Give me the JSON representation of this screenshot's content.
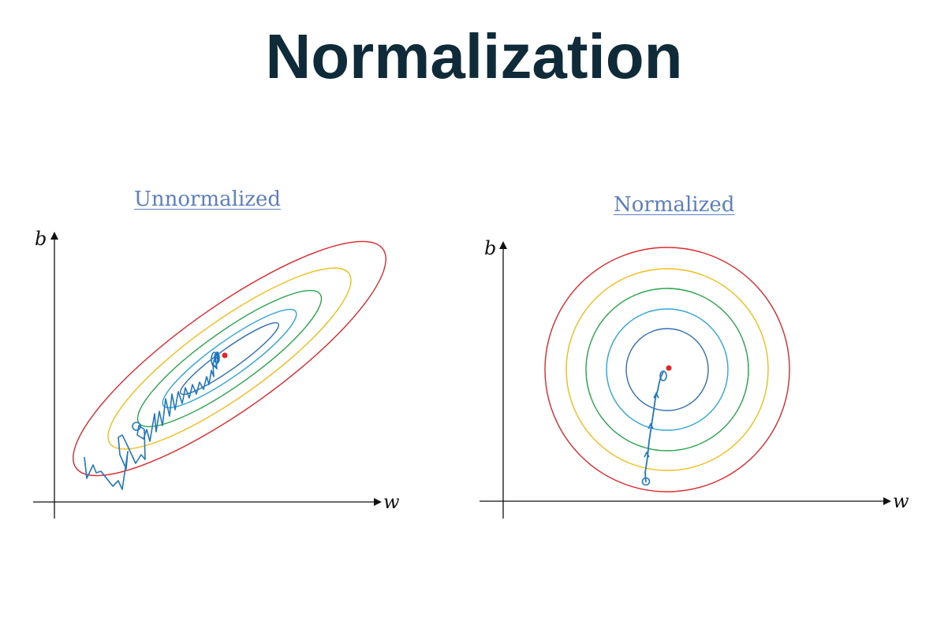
{
  "title": "Normalization",
  "panels": [
    {
      "title": "Unnormalized",
      "x_axis_label": "w",
      "y_axis_label": "b",
      "contour_colors": [
        "#e0282a",
        "#f1bd1a",
        "#2aa64a",
        "#2fa6d8",
        "#2f6fb4"
      ],
      "path_color": "#1f78c1",
      "minimum_color": "#e0282a"
    },
    {
      "title": "Normalized",
      "x_axis_label": "w",
      "y_axis_label": "b",
      "contour_colors": [
        "#e0282a",
        "#f1bd1a",
        "#2aa64a",
        "#2fa6d8",
        "#2f6fb4"
      ],
      "path_color": "#1f78c1",
      "minimum_color": "#e0282a"
    }
  ]
}
